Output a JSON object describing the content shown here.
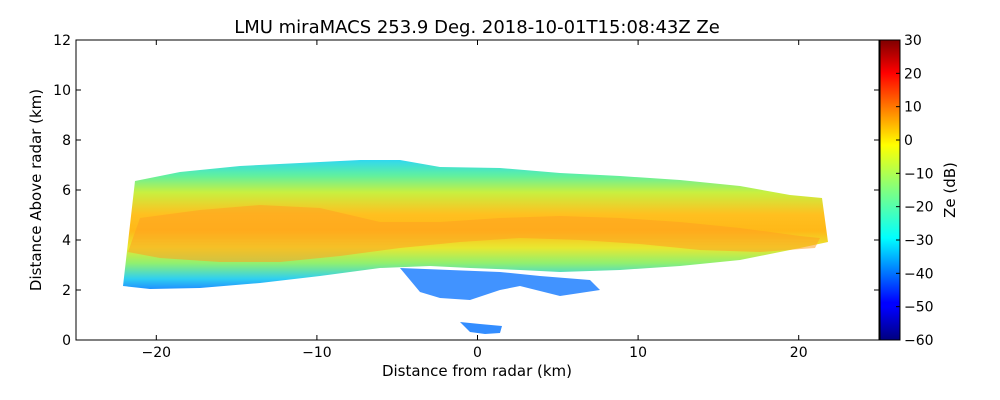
{
  "chart_data": {
    "type": "heatmap",
    "title": "LMU miraMACS 253.9 Deg. 2018-10-01T15:08:43Z  Ze",
    "xlabel": "Distance from radar (km)",
    "ylabel": "Distance Above radar  (km)",
    "xlim": [
      -25,
      25
    ],
    "ylim": [
      0,
      12
    ],
    "x_ticks": [
      -20,
      -10,
      0,
      10,
      20
    ],
    "x_tick_labels": [
      "−20",
      "−10",
      "0",
      "10",
      "20"
    ],
    "y_ticks": [
      0,
      2,
      4,
      6,
      8,
      10,
      12
    ],
    "y_tick_labels": [
      "0",
      "2",
      "4",
      "6",
      "8",
      "10",
      "12"
    ],
    "colorbar": {
      "label": "Ze (dB)",
      "range": [
        -60,
        30
      ],
      "ticks": [
        30,
        20,
        10,
        0,
        -10,
        -20,
        -30,
        -40,
        -50,
        -60
      ],
      "tick_labels": [
        "30",
        "20",
        "10",
        "0",
        "−10",
        "−20",
        "−30",
        "−40",
        "−50",
        "−60"
      ],
      "colormap": "jet"
    },
    "echo_layer": {
      "x_range_km": [
        -22,
        21.7
      ],
      "base_km_approx": 2.5,
      "top_km_approx": 6.8,
      "core_height_km": 4.3,
      "core_Ze_dB": [
        -5,
        0
      ],
      "edge_Ze_dB": [
        -30,
        -20
      ],
      "base_Ze_dB": [
        -45,
        -35
      ]
    }
  }
}
